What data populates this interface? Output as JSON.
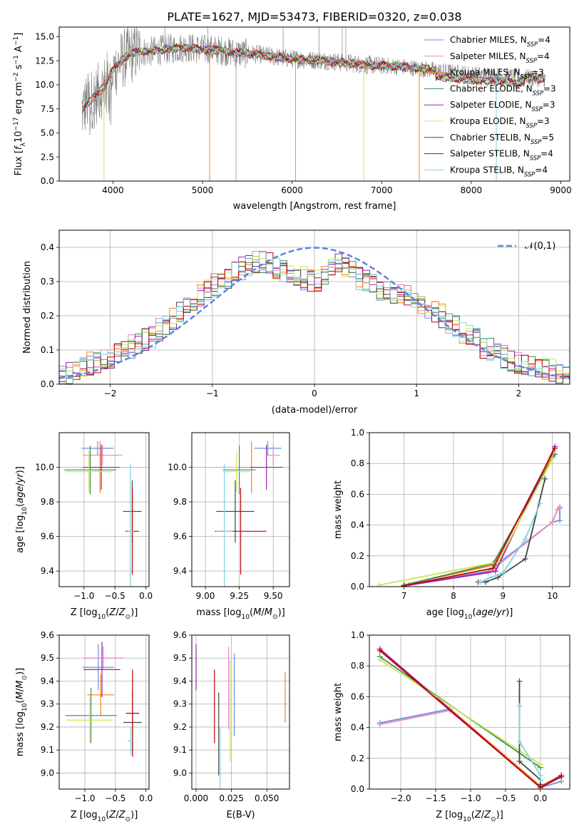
{
  "figure": {
    "title": "PLATE=1627, MJD=53473, FIBERID=0320, z=0.038"
  },
  "colors": {
    "chabrier_miles": "#6b8ee0",
    "salpeter_miles": "#e887c4",
    "kroupa_miles": "#ff7f0e",
    "chabrier_elodie": "#3c8c5a",
    "salpeter_elodie": "#9b1fb0",
    "kroupa_elodie": "#c9e84a",
    "chabrier_stelib": "#444444",
    "salpeter_stelib": "#c00000",
    "kroupa_stelib": "#7fd4dc",
    "data_spectrum": "#7f7f7f",
    "normal_curve": "#5b86d9",
    "grid": "#b0b0b0"
  },
  "chart_data": [
    {
      "id": "spectrum",
      "type": "line",
      "title": "PLATE=1627, MJD=53473, FIBERID=0320, z=0.038",
      "xlabel": "wavelength [Angstrom, rest frame]",
      "ylabel": "Flux [f_λ10^-17 erg cm^-2 s^-1 A^-1]",
      "xlim": [
        3400,
        9100
      ],
      "ylim": [
        0,
        16
      ],
      "xticks": [
        4000,
        5000,
        6000,
        7000,
        8000,
        9000
      ],
      "yticks": [
        0.0,
        2.5,
        5.0,
        7.5,
        10.0,
        12.5,
        15.0
      ],
      "grid": false,
      "legend_position": "top-right",
      "continuum": {
        "x": [
          3650,
          3700,
          3800,
          3900,
          4000,
          4100,
          4200,
          4300,
          4400,
          4500,
          4600,
          4800,
          5000,
          5200,
          5400,
          5600,
          5800,
          6000,
          6200,
          6400,
          6600,
          6800,
          7000,
          7200,
          7400,
          7600,
          7800,
          8000,
          8200,
          8400,
          8600,
          8800
        ],
        "y": [
          7.2,
          8.0,
          8.8,
          9.8,
          11.5,
          12.6,
          13.2,
          13.5,
          13.4,
          13.6,
          13.7,
          13.9,
          13.7,
          13.6,
          13.3,
          13.2,
          12.9,
          12.7,
          12.6,
          12.5,
          12.3,
          12.1,
          12.0,
          11.9,
          11.7,
          11.5,
          11.3,
          11.1,
          11.0,
          10.9,
          10.8,
          10.6
        ]
      },
      "series": [
        {
          "name": "Chabrier MILES, N_SSP=4"
        },
        {
          "name": "Salpeter MILES, N_SSP=4"
        },
        {
          "name": "Kroupa MILES, N_SSP=3"
        },
        {
          "name": "Chabrier ELODIE, N_SSP=3"
        },
        {
          "name": "Salpeter ELODIE, N_SSP=3"
        },
        {
          "name": "Kroupa ELODIE, N_SSP=3"
        },
        {
          "name": "Chabrier STELIB, N_SSP=5"
        },
        {
          "name": "Salpeter STELIB, N_SSP=4"
        },
        {
          "name": "Kroupa STELIB, N_SSP=4"
        }
      ]
    },
    {
      "id": "residuals",
      "type": "step",
      "xlabel": "(data-model)/error",
      "ylabel": "Normed distribution",
      "xlim": [
        -2.5,
        2.5
      ],
      "ylim": [
        0,
        0.45
      ],
      "xticks": [
        -2,
        -1,
        0,
        1,
        2
      ],
      "yticks": [
        0.0,
        0.1,
        0.2,
        0.3,
        0.4
      ],
      "grid": true,
      "legend_position": "top-right",
      "legend": "𝒩(0,1)",
      "bin_width": 0.1,
      "base_density": [
        0.02,
        0.03,
        0.04,
        0.05,
        0.06,
        0.06,
        0.07,
        0.08,
        0.09,
        0.1,
        0.11,
        0.12,
        0.13,
        0.14,
        0.16,
        0.17,
        0.19,
        0.21,
        0.23,
        0.24,
        0.26,
        0.27,
        0.29,
        0.3,
        0.31,
        0.33,
        0.34,
        0.35,
        0.36,
        0.36,
        0.35,
        0.34,
        0.33,
        0.32,
        0.32,
        0.31,
        0.3,
        0.3,
        0.31,
        0.34,
        0.35,
        0.34,
        0.33,
        0.31,
        0.3,
        0.29,
        0.28,
        0.27,
        0.27,
        0.27,
        0.26,
        0.25,
        0.24,
        0.22,
        0.21,
        0.2,
        0.18,
        0.17,
        0.15,
        0.14,
        0.13,
        0.11,
        0.1,
        0.09,
        0.08,
        0.07,
        0.06,
        0.06,
        0.05,
        0.05,
        0.04,
        0.04,
        0.03,
        0.03
      ],
      "x_start": -2.5
    },
    {
      "id": "age_vs_Z",
      "type": "errorbar",
      "xlabel": "Z [log10(Z/Z⊙)]",
      "ylabel": "age  [log10(age/yr)]",
      "xlim": [
        -1.4,
        0.05
      ],
      "ylim": [
        9.31,
        10.2
      ],
      "xticks": [
        -1.0,
        -0.5,
        0.0
      ],
      "xticklabels": [
        "−1.0",
        "−0.5",
        "0.0"
      ],
      "yticks": [
        9.4,
        9.6,
        9.8,
        10.0
      ],
      "grid": true,
      "points": [
        {
          "x": -0.78,
          "y": 10.11,
          "xerr": 0.26,
          "yerr": 0.04,
          "series": 0
        },
        {
          "x": -0.7,
          "y": 10.07,
          "xerr": 0.32,
          "yerr": 0.06,
          "series": 1
        },
        {
          "x": -0.74,
          "y": 10.0,
          "xerr": 0.22,
          "yerr": 0.15,
          "series": 2
        },
        {
          "x": -0.9,
          "y": 9.985,
          "xerr": 0.42,
          "yerr": 0.14,
          "series": 3
        },
        {
          "x": -0.72,
          "y": 10.0,
          "xerr": 0.3,
          "yerr": 0.13,
          "series": 4
        },
        {
          "x": -0.92,
          "y": 9.975,
          "xerr": 0.38,
          "yerr": 0.12,
          "series": 5
        },
        {
          "x": -0.22,
          "y": 9.745,
          "xerr": 0.15,
          "yerr": 0.18,
          "series": 6
        },
        {
          "x": -0.22,
          "y": 9.63,
          "xerr": 0.11,
          "yerr": 0.25,
          "series": 7
        },
        {
          "x": -0.25,
          "y": 9.63,
          "xerr": 0.05,
          "yerr": 0.39,
          "series": 8
        }
      ]
    },
    {
      "id": "age_vs_mass",
      "type": "errorbar",
      "xlabel": "mass [log10(M/M⊙)]",
      "ylabel": "",
      "xlim": [
        8.9,
        9.62
      ],
      "ylim": [
        9.31,
        10.2
      ],
      "xticks": [
        9.0,
        9.25,
        9.5
      ],
      "xticklabels": [
        "9.00",
        "9.25",
        "9.50"
      ],
      "yticks": [
        9.4,
        9.6,
        9.8,
        10.0
      ],
      "grid": true,
      "points": [
        {
          "x": 9.46,
          "y": 10.11,
          "xerr": 0.1,
          "yerr": 0.04,
          "series": 0
        },
        {
          "x": 9.5,
          "y": 10.07,
          "xerr": 0.05,
          "yerr": 0.06,
          "series": 1
        },
        {
          "x": 9.34,
          "y": 10.0,
          "xerr": 0.09,
          "yerr": 0.15,
          "series": 2
        },
        {
          "x": 9.25,
          "y": 9.985,
          "xerr": 0.12,
          "yerr": 0.14,
          "series": 3
        },
        {
          "x": 9.45,
          "y": 10.0,
          "xerr": 0.12,
          "yerr": 0.13,
          "series": 4
        },
        {
          "x": 9.23,
          "y": 9.975,
          "xerr": 0.1,
          "yerr": 0.12,
          "series": 5
        },
        {
          "x": 9.22,
          "y": 9.745,
          "xerr": 0.14,
          "yerr": 0.18,
          "series": 6
        },
        {
          "x": 9.26,
          "y": 9.63,
          "xerr": 0.19,
          "yerr": 0.25,
          "series": 7
        },
        {
          "x": 9.14,
          "y": 9.63,
          "xerr": 0.06,
          "yerr": 0.39,
          "series": 8
        }
      ]
    },
    {
      "id": "massweight_vs_age",
      "type": "line",
      "xlabel": "age  [log10(age/yr)]",
      "ylabel": "mass weight",
      "xlim": [
        6.3,
        10.35
      ],
      "ylim": [
        0,
        1.0
      ],
      "xticks": [
        7,
        8,
        9,
        10
      ],
      "yticks": [
        0.0,
        0.2,
        0.4,
        0.6,
        0.8,
        1.0
      ],
      "grid": true,
      "series": [
        {
          "series": 0,
          "x": [
            7.1,
            8.7,
            10.0,
            10.15,
            10.15
          ],
          "y": [
            0.01,
            0.1,
            0.42,
            0.43,
            0.51
          ]
        },
        {
          "series": 1,
          "x": [
            7.1,
            8.7,
            10.0,
            10.1,
            10.15
          ],
          "y": [
            0.01,
            0.09,
            0.42,
            0.5,
            0.52
          ]
        },
        {
          "series": 2,
          "x": [
            7.0,
            8.8,
            10.0
          ],
          "y": [
            0.01,
            0.14,
            0.85
          ]
        },
        {
          "series": 3,
          "x": [
            7.0,
            8.8,
            10.05
          ],
          "y": [
            0.01,
            0.15,
            0.86
          ]
        },
        {
          "series": 4,
          "x": [
            7.0,
            8.85,
            10.05
          ],
          "y": [
            0.005,
            0.1,
            0.91
          ]
        },
        {
          "series": 5,
          "x": [
            6.5,
            8.9,
            10.0
          ],
          "y": [
            0.01,
            0.16,
            0.83
          ]
        },
        {
          "series": 6,
          "x": [
            8.5,
            8.65,
            8.9,
            9.45,
            9.85
          ],
          "y": [
            0.03,
            0.03,
            0.06,
            0.18,
            0.7
          ]
        },
        {
          "series": 7,
          "x": [
            7.0,
            8.8,
            10.05
          ],
          "y": [
            0.005,
            0.12,
            0.9
          ]
        },
        {
          "series": 8,
          "x": [
            8.55,
            8.75,
            9.0,
            9.45,
            9.75
          ],
          "y": [
            0.03,
            0.06,
            0.09,
            0.31,
            0.54
          ]
        }
      ]
    },
    {
      "id": "mass_vs_Z",
      "type": "errorbar",
      "xlabel": "Z [log10(Z/Z⊙)]",
      "ylabel": "mass [log10(M/M⊙)]",
      "xlim": [
        -1.42,
        0.05
      ],
      "ylim": [
        8.93,
        9.6
      ],
      "xticks": [
        -1.0,
        -0.5,
        0.0
      ],
      "xticklabels": [
        "−1.0",
        "−0.5",
        "0.0"
      ],
      "yticks": [
        9.0,
        9.1,
        9.2,
        9.3,
        9.4,
        9.5,
        9.6
      ],
      "grid": true,
      "points": [
        {
          "x": -0.78,
          "y": 9.46,
          "xerr": 0.26,
          "yerr": 0.1,
          "series": 0
        },
        {
          "x": -0.7,
          "y": 9.5,
          "xerr": 0.32,
          "yerr": 0.05,
          "series": 1
        },
        {
          "x": -0.74,
          "y": 9.34,
          "xerr": 0.22,
          "yerr": 0.09,
          "series": 2
        },
        {
          "x": -0.9,
          "y": 9.25,
          "xerr": 0.42,
          "yerr": 0.12,
          "series": 3
        },
        {
          "x": -0.72,
          "y": 9.45,
          "xerr": 0.3,
          "yerr": 0.12,
          "series": 4
        },
        {
          "x": -0.92,
          "y": 9.23,
          "xerr": 0.38,
          "yerr": 0.1,
          "series": 5
        },
        {
          "x": -0.22,
          "y": 9.22,
          "xerr": 0.15,
          "yerr": 0.14,
          "series": 6
        },
        {
          "x": -0.22,
          "y": 9.26,
          "xerr": 0.11,
          "yerr": 0.19,
          "series": 7
        },
        {
          "x": -0.25,
          "y": 9.14,
          "xerr": 0.05,
          "yerr": 0.06,
          "series": 8
        }
      ]
    },
    {
      "id": "mass_vs_ebv",
      "type": "errorbar",
      "xlabel": "E(B-V)",
      "ylabel": "",
      "xlim": [
        -0.003,
        0.066
      ],
      "ylim": [
        8.93,
        9.6
      ],
      "xticks": [
        0.0,
        0.025,
        0.05
      ],
      "xticklabels": [
        "0.000",
        "0.025",
        "0.050"
      ],
      "yticks": [
        9.0,
        9.1,
        9.2,
        9.3,
        9.4,
        9.5,
        9.6
      ],
      "grid": true,
      "points": [
        {
          "x": 0.0,
          "y": 9.46,
          "xerr": 0,
          "yerr": 0.1,
          "series": 4
        },
        {
          "x": 0.013,
          "y": 9.29,
          "xerr": 0,
          "yerr": 0.16,
          "series": 7
        },
        {
          "x": 0.016,
          "y": 9.17,
          "xerr": 0,
          "yerr": 0.18,
          "series": 6
        },
        {
          "x": 0.017,
          "y": 9.05,
          "xerr": 0,
          "yerr": 0.15,
          "series": 8
        },
        {
          "x": 0.023,
          "y": 9.37,
          "xerr": 0,
          "yerr": 0.18,
          "series": 1
        },
        {
          "x": 0.024,
          "y": 9.27,
          "xerr": 0,
          "yerr": 0.22,
          "series": 5
        },
        {
          "x": 0.027,
          "y": 9.34,
          "xerr": 0,
          "yerr": 0.18,
          "series": 0
        },
        {
          "x": 0.063,
          "y": 9.33,
          "xerr": 0,
          "yerr": 0.11,
          "series": 2
        }
      ]
    },
    {
      "id": "massweight_vs_Z",
      "type": "line",
      "xlabel": "Z [log10(Z/Z⊙)]",
      "ylabel": "mass weight",
      "xlim": [
        -2.45,
        0.42
      ],
      "ylim": [
        0,
        1.0
      ],
      "xticks": [
        -2.0,
        -1.5,
        -1.0,
        -0.5,
        0.0
      ],
      "xticklabels": [
        "−2.0",
        "−1.5",
        "−1.0",
        "−0.5",
        "0.0"
      ],
      "yticks": [
        0.0,
        0.2,
        0.4,
        0.6,
        0.8,
        1.0
      ],
      "grid": true,
      "series": [
        {
          "series": 0,
          "x": [
            -2.3,
            -1.3,
            0.0,
            0.3
          ],
          "y": [
            0.43,
            0.52,
            0.01,
            0.05
          ]
        },
        {
          "series": 1,
          "x": [
            -2.3,
            -1.3,
            0.0,
            0.3
          ],
          "y": [
            0.42,
            0.51,
            0.02,
            0.08
          ]
        },
        {
          "series": 2,
          "x": [
            -2.3,
            0.0,
            0.3
          ],
          "y": [
            0.91,
            0.02,
            0.09
          ]
        },
        {
          "series": 3,
          "x": [
            -2.3,
            0.0
          ],
          "y": [
            0.86,
            0.14
          ]
        },
        {
          "series": 4,
          "x": [
            -2.3,
            0.0,
            0.3
          ],
          "y": [
            0.91,
            0.01,
            0.09
          ]
        },
        {
          "series": 5,
          "x": [
            -2.3,
            0.0
          ],
          "y": [
            0.84,
            0.16
          ]
        },
        {
          "series": 6,
          "x": [
            -0.3,
            -0.3,
            0.0,
            0.0
          ],
          "y": [
            0.7,
            0.18,
            0.06,
            0.03
          ]
        },
        {
          "series": 7,
          "x": [
            -2.3,
            0.0,
            0.3
          ],
          "y": [
            0.9,
            0.01,
            0.08
          ]
        },
        {
          "series": 8,
          "x": [
            -0.3,
            -0.3,
            0.0,
            0.0
          ],
          "y": [
            0.54,
            0.31,
            0.09,
            0.06
          ]
        }
      ]
    }
  ]
}
